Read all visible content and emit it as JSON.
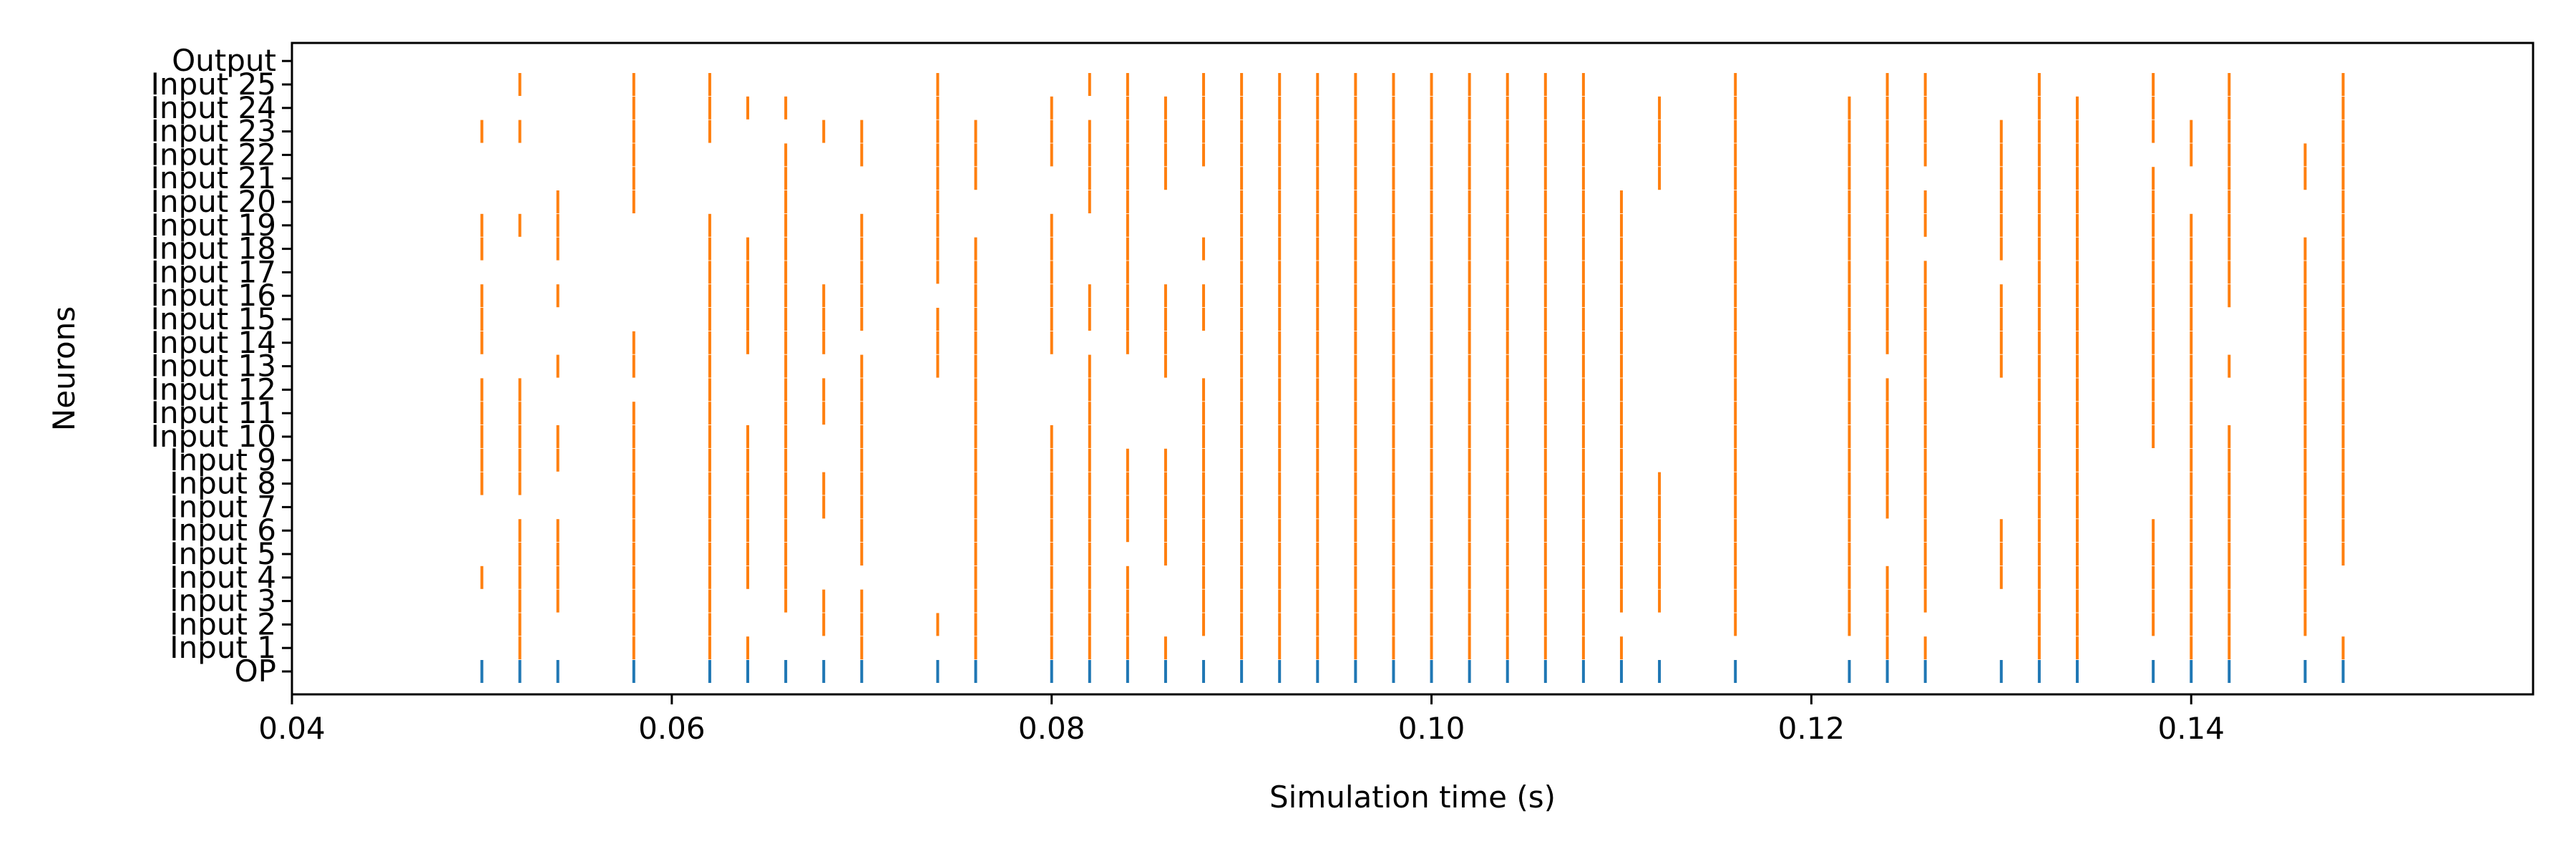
{
  "chart_data": {
    "type": "raster",
    "title": "",
    "xlabel": "Simulation time (s)",
    "ylabel": "Neurons",
    "xlim": [
      0.04,
      0.158
    ],
    "x_ticks": [
      0.04,
      0.06,
      0.08,
      0.1,
      0.12,
      0.14
    ],
    "x_tick_labels": [
      "0.04",
      "0.06",
      "0.08",
      "0.10",
      "0.12",
      "0.14"
    ],
    "grid": false,
    "colors": {
      "op": "#1f77b4",
      "inputs": "#ff7f0e"
    },
    "y_tick_labels": [
      "OP",
      "Input 1",
      "Input 2",
      "Input 3",
      "Input 4",
      "Input 5",
      "Input 6",
      "Input 7",
      "Input 8",
      "Input 9",
      "Input 10",
      "Input 11",
      "Input 12",
      "Input 13",
      "Input 14",
      "Input 15",
      "Input 16",
      "Input 17",
      "Input 18",
      "Input 19",
      "Input 20",
      "Input 21",
      "Input 22",
      "Input 23",
      "Input 24",
      "Input 25",
      "Output"
    ],
    "series": [
      {
        "name": "OP",
        "spike_times": [
          0.05,
          0.052,
          0.054,
          0.058,
          0.062,
          0.064,
          0.066,
          0.068,
          0.07,
          0.074,
          0.076,
          0.08,
          0.082,
          0.084,
          0.086,
          0.088,
          0.09,
          0.092,
          0.094,
          0.096,
          0.098,
          0.1,
          0.102,
          0.104,
          0.106,
          0.108,
          0.11,
          0.112,
          0.116,
          0.122,
          0.124,
          0.126,
          0.13,
          0.132,
          0.134,
          0.138,
          0.14,
          0.142,
          0.146,
          0.148
        ]
      },
      {
        "name": "Input 1",
        "spike_times": [
          0.052,
          0.058,
          0.062,
          0.064,
          0.07,
          0.076,
          0.08,
          0.082,
          0.084,
          0.086,
          0.09,
          0.092,
          0.094,
          0.096,
          0.098,
          0.1,
          0.102,
          0.104,
          0.106,
          0.108,
          0.11,
          0.124,
          0.126,
          0.132,
          0.134,
          0.14,
          0.142,
          0.148
        ]
      },
      {
        "name": "Input 2",
        "spike_times": [
          0.052,
          0.058,
          0.062,
          0.068,
          0.07,
          0.074,
          0.076,
          0.08,
          0.082,
          0.084,
          0.088,
          0.09,
          0.092,
          0.094,
          0.096,
          0.098,
          0.1,
          0.102,
          0.104,
          0.106,
          0.108,
          0.116,
          0.122,
          0.124,
          0.132,
          0.134,
          0.138,
          0.14,
          0.142,
          0.146
        ]
      },
      {
        "name": "Input 3",
        "spike_times": [
          0.052,
          0.054,
          0.058,
          0.062,
          0.066,
          0.068,
          0.07,
          0.076,
          0.08,
          0.082,
          0.084,
          0.088,
          0.09,
          0.092,
          0.094,
          0.096,
          0.098,
          0.1,
          0.102,
          0.104,
          0.106,
          0.108,
          0.11,
          0.112,
          0.116,
          0.122,
          0.124,
          0.126,
          0.132,
          0.134,
          0.138,
          0.14,
          0.142,
          0.146
        ]
      },
      {
        "name": "Input 4",
        "spike_times": [
          0.05,
          0.052,
          0.054,
          0.058,
          0.062,
          0.064,
          0.066,
          0.076,
          0.08,
          0.082,
          0.084,
          0.088,
          0.09,
          0.092,
          0.094,
          0.096,
          0.098,
          0.1,
          0.102,
          0.104,
          0.106,
          0.108,
          0.11,
          0.112,
          0.116,
          0.122,
          0.124,
          0.126,
          0.13,
          0.132,
          0.134,
          0.138,
          0.14,
          0.142,
          0.146
        ]
      },
      {
        "name": "Input 5",
        "spike_times": [
          0.052,
          0.054,
          0.058,
          0.062,
          0.064,
          0.066,
          0.07,
          0.076,
          0.08,
          0.082,
          0.086,
          0.088,
          0.09,
          0.092,
          0.094,
          0.096,
          0.098,
          0.1,
          0.102,
          0.104,
          0.106,
          0.108,
          0.11,
          0.112,
          0.116,
          0.122,
          0.126,
          0.13,
          0.132,
          0.134,
          0.138,
          0.14,
          0.142,
          0.146,
          0.148
        ]
      },
      {
        "name": "Input 6",
        "spike_times": [
          0.052,
          0.054,
          0.058,
          0.062,
          0.064,
          0.066,
          0.07,
          0.076,
          0.08,
          0.082,
          0.084,
          0.086,
          0.088,
          0.09,
          0.092,
          0.094,
          0.096,
          0.098,
          0.1,
          0.102,
          0.104,
          0.106,
          0.108,
          0.11,
          0.112,
          0.116,
          0.122,
          0.126,
          0.13,
          0.132,
          0.134,
          0.138,
          0.14,
          0.142,
          0.146,
          0.148
        ]
      },
      {
        "name": "Input 7",
        "spike_times": [
          0.058,
          0.062,
          0.064,
          0.066,
          0.068,
          0.07,
          0.076,
          0.08,
          0.082,
          0.084,
          0.086,
          0.088,
          0.09,
          0.092,
          0.094,
          0.096,
          0.098,
          0.1,
          0.102,
          0.104,
          0.106,
          0.108,
          0.11,
          0.112,
          0.116,
          0.122,
          0.124,
          0.126,
          0.132,
          0.134,
          0.14,
          0.142,
          0.146,
          0.148
        ]
      },
      {
        "name": "Input 8",
        "spike_times": [
          0.05,
          0.052,
          0.058,
          0.062,
          0.064,
          0.066,
          0.068,
          0.07,
          0.076,
          0.08,
          0.082,
          0.084,
          0.086,
          0.088,
          0.09,
          0.092,
          0.094,
          0.096,
          0.098,
          0.1,
          0.102,
          0.104,
          0.106,
          0.108,
          0.11,
          0.112,
          0.116,
          0.122,
          0.124,
          0.126,
          0.132,
          0.134,
          0.14,
          0.142,
          0.146,
          0.148
        ]
      },
      {
        "name": "Input 9",
        "spike_times": [
          0.05,
          0.052,
          0.054,
          0.058,
          0.062,
          0.064,
          0.066,
          0.07,
          0.076,
          0.08,
          0.082,
          0.084,
          0.086,
          0.088,
          0.09,
          0.092,
          0.094,
          0.096,
          0.098,
          0.1,
          0.102,
          0.104,
          0.106,
          0.108,
          0.11,
          0.116,
          0.122,
          0.124,
          0.126,
          0.132,
          0.134,
          0.14,
          0.142,
          0.146,
          0.148
        ]
      },
      {
        "name": "Input 10",
        "spike_times": [
          0.05,
          0.052,
          0.054,
          0.058,
          0.062,
          0.064,
          0.066,
          0.07,
          0.076,
          0.08,
          0.082,
          0.088,
          0.09,
          0.092,
          0.094,
          0.096,
          0.098,
          0.1,
          0.102,
          0.104,
          0.106,
          0.108,
          0.11,
          0.116,
          0.122,
          0.124,
          0.126,
          0.132,
          0.134,
          0.138,
          0.14,
          0.142,
          0.146,
          0.148
        ]
      },
      {
        "name": "Input 11",
        "spike_times": [
          0.05,
          0.052,
          0.058,
          0.062,
          0.066,
          0.068,
          0.07,
          0.076,
          0.082,
          0.088,
          0.09,
          0.092,
          0.094,
          0.096,
          0.098,
          0.1,
          0.102,
          0.104,
          0.106,
          0.108,
          0.11,
          0.116,
          0.122,
          0.124,
          0.126,
          0.132,
          0.134,
          0.138,
          0.14,
          0.146,
          0.148
        ]
      },
      {
        "name": "Input 12",
        "spike_times": [
          0.05,
          0.052,
          0.062,
          0.066,
          0.068,
          0.07,
          0.076,
          0.082,
          0.088,
          0.09,
          0.092,
          0.094,
          0.096,
          0.098,
          0.1,
          0.102,
          0.104,
          0.106,
          0.108,
          0.11,
          0.116,
          0.122,
          0.124,
          0.126,
          0.132,
          0.134,
          0.138,
          0.14,
          0.146,
          0.148
        ]
      },
      {
        "name": "Input 13",
        "spike_times": [
          0.054,
          0.058,
          0.062,
          0.066,
          0.07,
          0.074,
          0.076,
          0.082,
          0.086,
          0.09,
          0.092,
          0.094,
          0.096,
          0.098,
          0.1,
          0.102,
          0.104,
          0.106,
          0.108,
          0.11,
          0.116,
          0.122,
          0.126,
          0.13,
          0.132,
          0.134,
          0.138,
          0.14,
          0.142,
          0.146,
          0.148
        ]
      },
      {
        "name": "Input 14",
        "spike_times": [
          0.05,
          0.058,
          0.062,
          0.064,
          0.066,
          0.068,
          0.074,
          0.076,
          0.08,
          0.084,
          0.086,
          0.09,
          0.092,
          0.094,
          0.096,
          0.098,
          0.1,
          0.102,
          0.104,
          0.106,
          0.108,
          0.11,
          0.116,
          0.122,
          0.124,
          0.126,
          0.13,
          0.132,
          0.134,
          0.138,
          0.14,
          0.146,
          0.148
        ]
      },
      {
        "name": "Input 15",
        "spike_times": [
          0.05,
          0.062,
          0.064,
          0.066,
          0.068,
          0.07,
          0.074,
          0.076,
          0.08,
          0.082,
          0.084,
          0.086,
          0.088,
          0.09,
          0.092,
          0.094,
          0.096,
          0.098,
          0.1,
          0.102,
          0.104,
          0.106,
          0.108,
          0.11,
          0.116,
          0.122,
          0.124,
          0.126,
          0.13,
          0.132,
          0.134,
          0.138,
          0.14,
          0.146,
          0.148
        ]
      },
      {
        "name": "Input 16",
        "spike_times": [
          0.05,
          0.054,
          0.062,
          0.064,
          0.066,
          0.068,
          0.07,
          0.076,
          0.08,
          0.082,
          0.084,
          0.086,
          0.088,
          0.09,
          0.092,
          0.094,
          0.096,
          0.098,
          0.1,
          0.102,
          0.104,
          0.106,
          0.108,
          0.11,
          0.116,
          0.122,
          0.124,
          0.126,
          0.13,
          0.132,
          0.134,
          0.138,
          0.14,
          0.142,
          0.146,
          0.148
        ]
      },
      {
        "name": "Input 17",
        "spike_times": [
          0.062,
          0.064,
          0.066,
          0.07,
          0.074,
          0.076,
          0.08,
          0.084,
          0.09,
          0.092,
          0.094,
          0.096,
          0.098,
          0.1,
          0.102,
          0.104,
          0.106,
          0.108,
          0.11,
          0.116,
          0.122,
          0.124,
          0.126,
          0.132,
          0.134,
          0.138,
          0.14,
          0.142,
          0.146,
          0.148
        ]
      },
      {
        "name": "Input 18",
        "spike_times": [
          0.05,
          0.054,
          0.062,
          0.064,
          0.066,
          0.07,
          0.074,
          0.076,
          0.08,
          0.084,
          0.088,
          0.09,
          0.092,
          0.094,
          0.096,
          0.098,
          0.1,
          0.102,
          0.104,
          0.106,
          0.108,
          0.11,
          0.116,
          0.122,
          0.124,
          0.13,
          0.132,
          0.134,
          0.138,
          0.14,
          0.142,
          0.146,
          0.148
        ]
      },
      {
        "name": "Input 19",
        "spike_times": [
          0.05,
          0.052,
          0.054,
          0.062,
          0.066,
          0.07,
          0.074,
          0.08,
          0.084,
          0.09,
          0.092,
          0.094,
          0.096,
          0.098,
          0.1,
          0.102,
          0.104,
          0.106,
          0.108,
          0.11,
          0.116,
          0.122,
          0.124,
          0.126,
          0.13,
          0.132,
          0.134,
          0.138,
          0.14,
          0.142,
          0.148
        ]
      },
      {
        "name": "Input 20",
        "spike_times": [
          0.054,
          0.058,
          0.066,
          0.074,
          0.082,
          0.084,
          0.09,
          0.092,
          0.094,
          0.096,
          0.098,
          0.1,
          0.102,
          0.104,
          0.106,
          0.108,
          0.11,
          0.116,
          0.122,
          0.124,
          0.126,
          0.13,
          0.132,
          0.134,
          0.138,
          0.142,
          0.148
        ]
      },
      {
        "name": "Input 21",
        "spike_times": [
          0.058,
          0.066,
          0.074,
          0.076,
          0.082,
          0.084,
          0.086,
          0.09,
          0.092,
          0.094,
          0.096,
          0.098,
          0.1,
          0.102,
          0.104,
          0.106,
          0.108,
          0.112,
          0.116,
          0.122,
          0.124,
          0.13,
          0.132,
          0.134,
          0.138,
          0.142,
          0.146,
          0.148
        ]
      },
      {
        "name": "Input 22",
        "spike_times": [
          0.058,
          0.066,
          0.07,
          0.074,
          0.076,
          0.08,
          0.082,
          0.084,
          0.086,
          0.088,
          0.09,
          0.092,
          0.094,
          0.096,
          0.098,
          0.1,
          0.102,
          0.104,
          0.106,
          0.108,
          0.112,
          0.116,
          0.122,
          0.124,
          0.126,
          0.13,
          0.132,
          0.134,
          0.14,
          0.142,
          0.146,
          0.148
        ]
      },
      {
        "name": "Input 23",
        "spike_times": [
          0.05,
          0.052,
          0.058,
          0.062,
          0.068,
          0.07,
          0.074,
          0.076,
          0.08,
          0.082,
          0.084,
          0.086,
          0.088,
          0.09,
          0.092,
          0.094,
          0.096,
          0.098,
          0.1,
          0.102,
          0.104,
          0.106,
          0.108,
          0.112,
          0.116,
          0.122,
          0.124,
          0.126,
          0.13,
          0.132,
          0.134,
          0.138,
          0.14,
          0.142,
          0.148
        ]
      },
      {
        "name": "Input 24",
        "spike_times": [
          0.058,
          0.062,
          0.064,
          0.066,
          0.074,
          0.08,
          0.084,
          0.086,
          0.088,
          0.09,
          0.092,
          0.094,
          0.096,
          0.098,
          0.1,
          0.102,
          0.104,
          0.106,
          0.108,
          0.112,
          0.116,
          0.122,
          0.124,
          0.126,
          0.132,
          0.134,
          0.138,
          0.142,
          0.148
        ]
      },
      {
        "name": "Input 25",
        "spike_times": [
          0.052,
          0.058,
          0.062,
          0.074,
          0.082,
          0.084,
          0.088,
          0.09,
          0.092,
          0.094,
          0.096,
          0.098,
          0.1,
          0.102,
          0.104,
          0.106,
          0.108,
          0.116,
          0.124,
          0.126,
          0.132,
          0.138,
          0.142,
          0.148
        ]
      },
      {
        "name": "Output",
        "spike_times": []
      }
    ]
  }
}
